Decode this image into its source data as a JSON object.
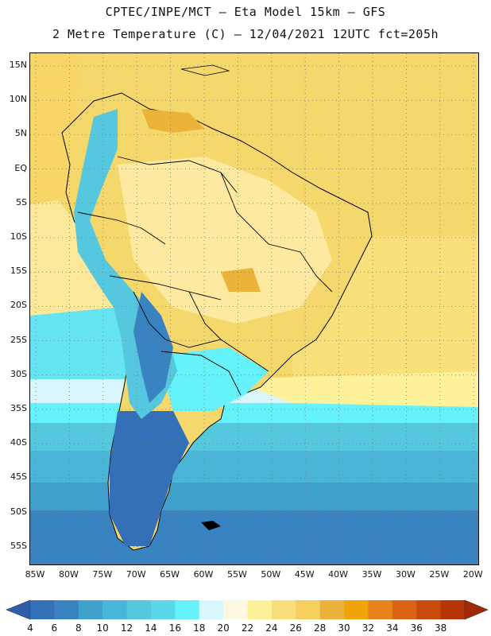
{
  "header": {
    "title_line1": "CPTEC/INPE/MCT –  Eta Model 15km – GFS",
    "title_line2": "2 Metre Temperature (C) – 12/04/2021 12UTC fct=205h"
  },
  "map": {
    "lat_labels": [
      "15N",
      "10N",
      "5N",
      "EQ",
      "5S",
      "10S",
      "15S",
      "20S",
      "25S",
      "30S",
      "35S",
      "40S",
      "45S",
      "50S",
      "55S"
    ],
    "lon_labels": [
      "85W",
      "80W",
      "75W",
      "70W",
      "65W",
      "60W",
      "55W",
      "50W",
      "45W",
      "40W",
      "35W",
      "30W",
      "25W",
      "20W"
    ],
    "gridlines": "dotted"
  },
  "colorbar": {
    "labels": [
      "4",
      "6",
      "8",
      "10",
      "12",
      "14",
      "16",
      "18",
      "20",
      "22",
      "24",
      "26",
      "28",
      "30",
      "32",
      "34",
      "36",
      "38"
    ],
    "colors": [
      "#3470b8",
      "#3a83c1",
      "#40a0cc",
      "#4bb5d8",
      "#55c8e0",
      "#5ad8ea",
      "#66f2fa",
      "#d8f6fc",
      "#fdf8e2",
      "#fdf29a",
      "#f9df7a",
      "#f5d05e",
      "#ecb33a",
      "#f0a30b",
      "#e8821a",
      "#dc6214",
      "#c84a0c",
      "#b83408"
    ],
    "low_arrow_color": "#2e5fa8",
    "high_arrow_color": "#a02a06"
  }
}
